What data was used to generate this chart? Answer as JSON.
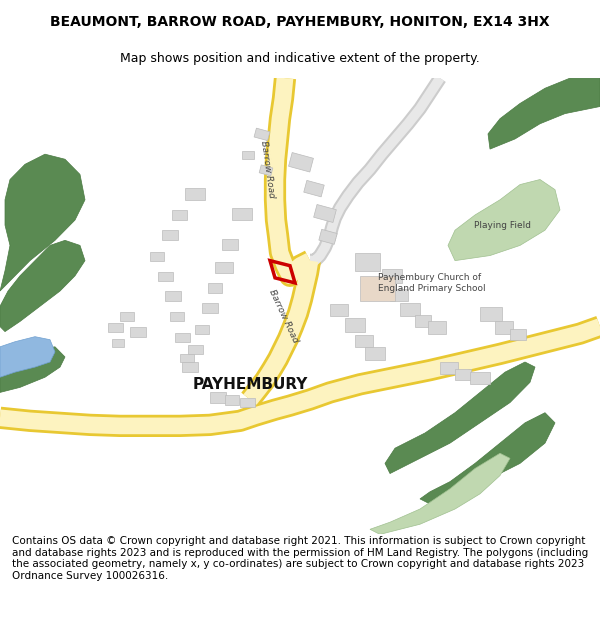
{
  "title": "BEAUMONT, BARROW ROAD, PAYHEMBURY, HONITON, EX14 3HX",
  "subtitle": "Map shows position and indicative extent of the property.",
  "footer": "Contains OS data © Crown copyright and database right 2021. This information is subject to Crown copyright and database rights 2023 and is reproduced with the permission of HM Land Registry. The polygons (including the associated geometry, namely x, y co-ordinates) are subject to Crown copyright and database rights 2023 Ordnance Survey 100026316.",
  "bg_color": "#ffffff",
  "road_yellow_fill": "#fdf3c0",
  "road_yellow_border": "#e8c832",
  "road_gray_fill": "#e8e8e8",
  "road_gray_border": "#cccccc",
  "building_fill": "#d8d8d8",
  "building_edge": "#bbbbbb",
  "building_fill2": "#e8d8c8",
  "green_dark": "#5a8a52",
  "green_light": "#c0d8b0",
  "blue_water": "#90b8e0",
  "red_plot": "#cc0000",
  "title_fontsize": 10,
  "subtitle_fontsize": 9,
  "footer_fontsize": 7.5
}
